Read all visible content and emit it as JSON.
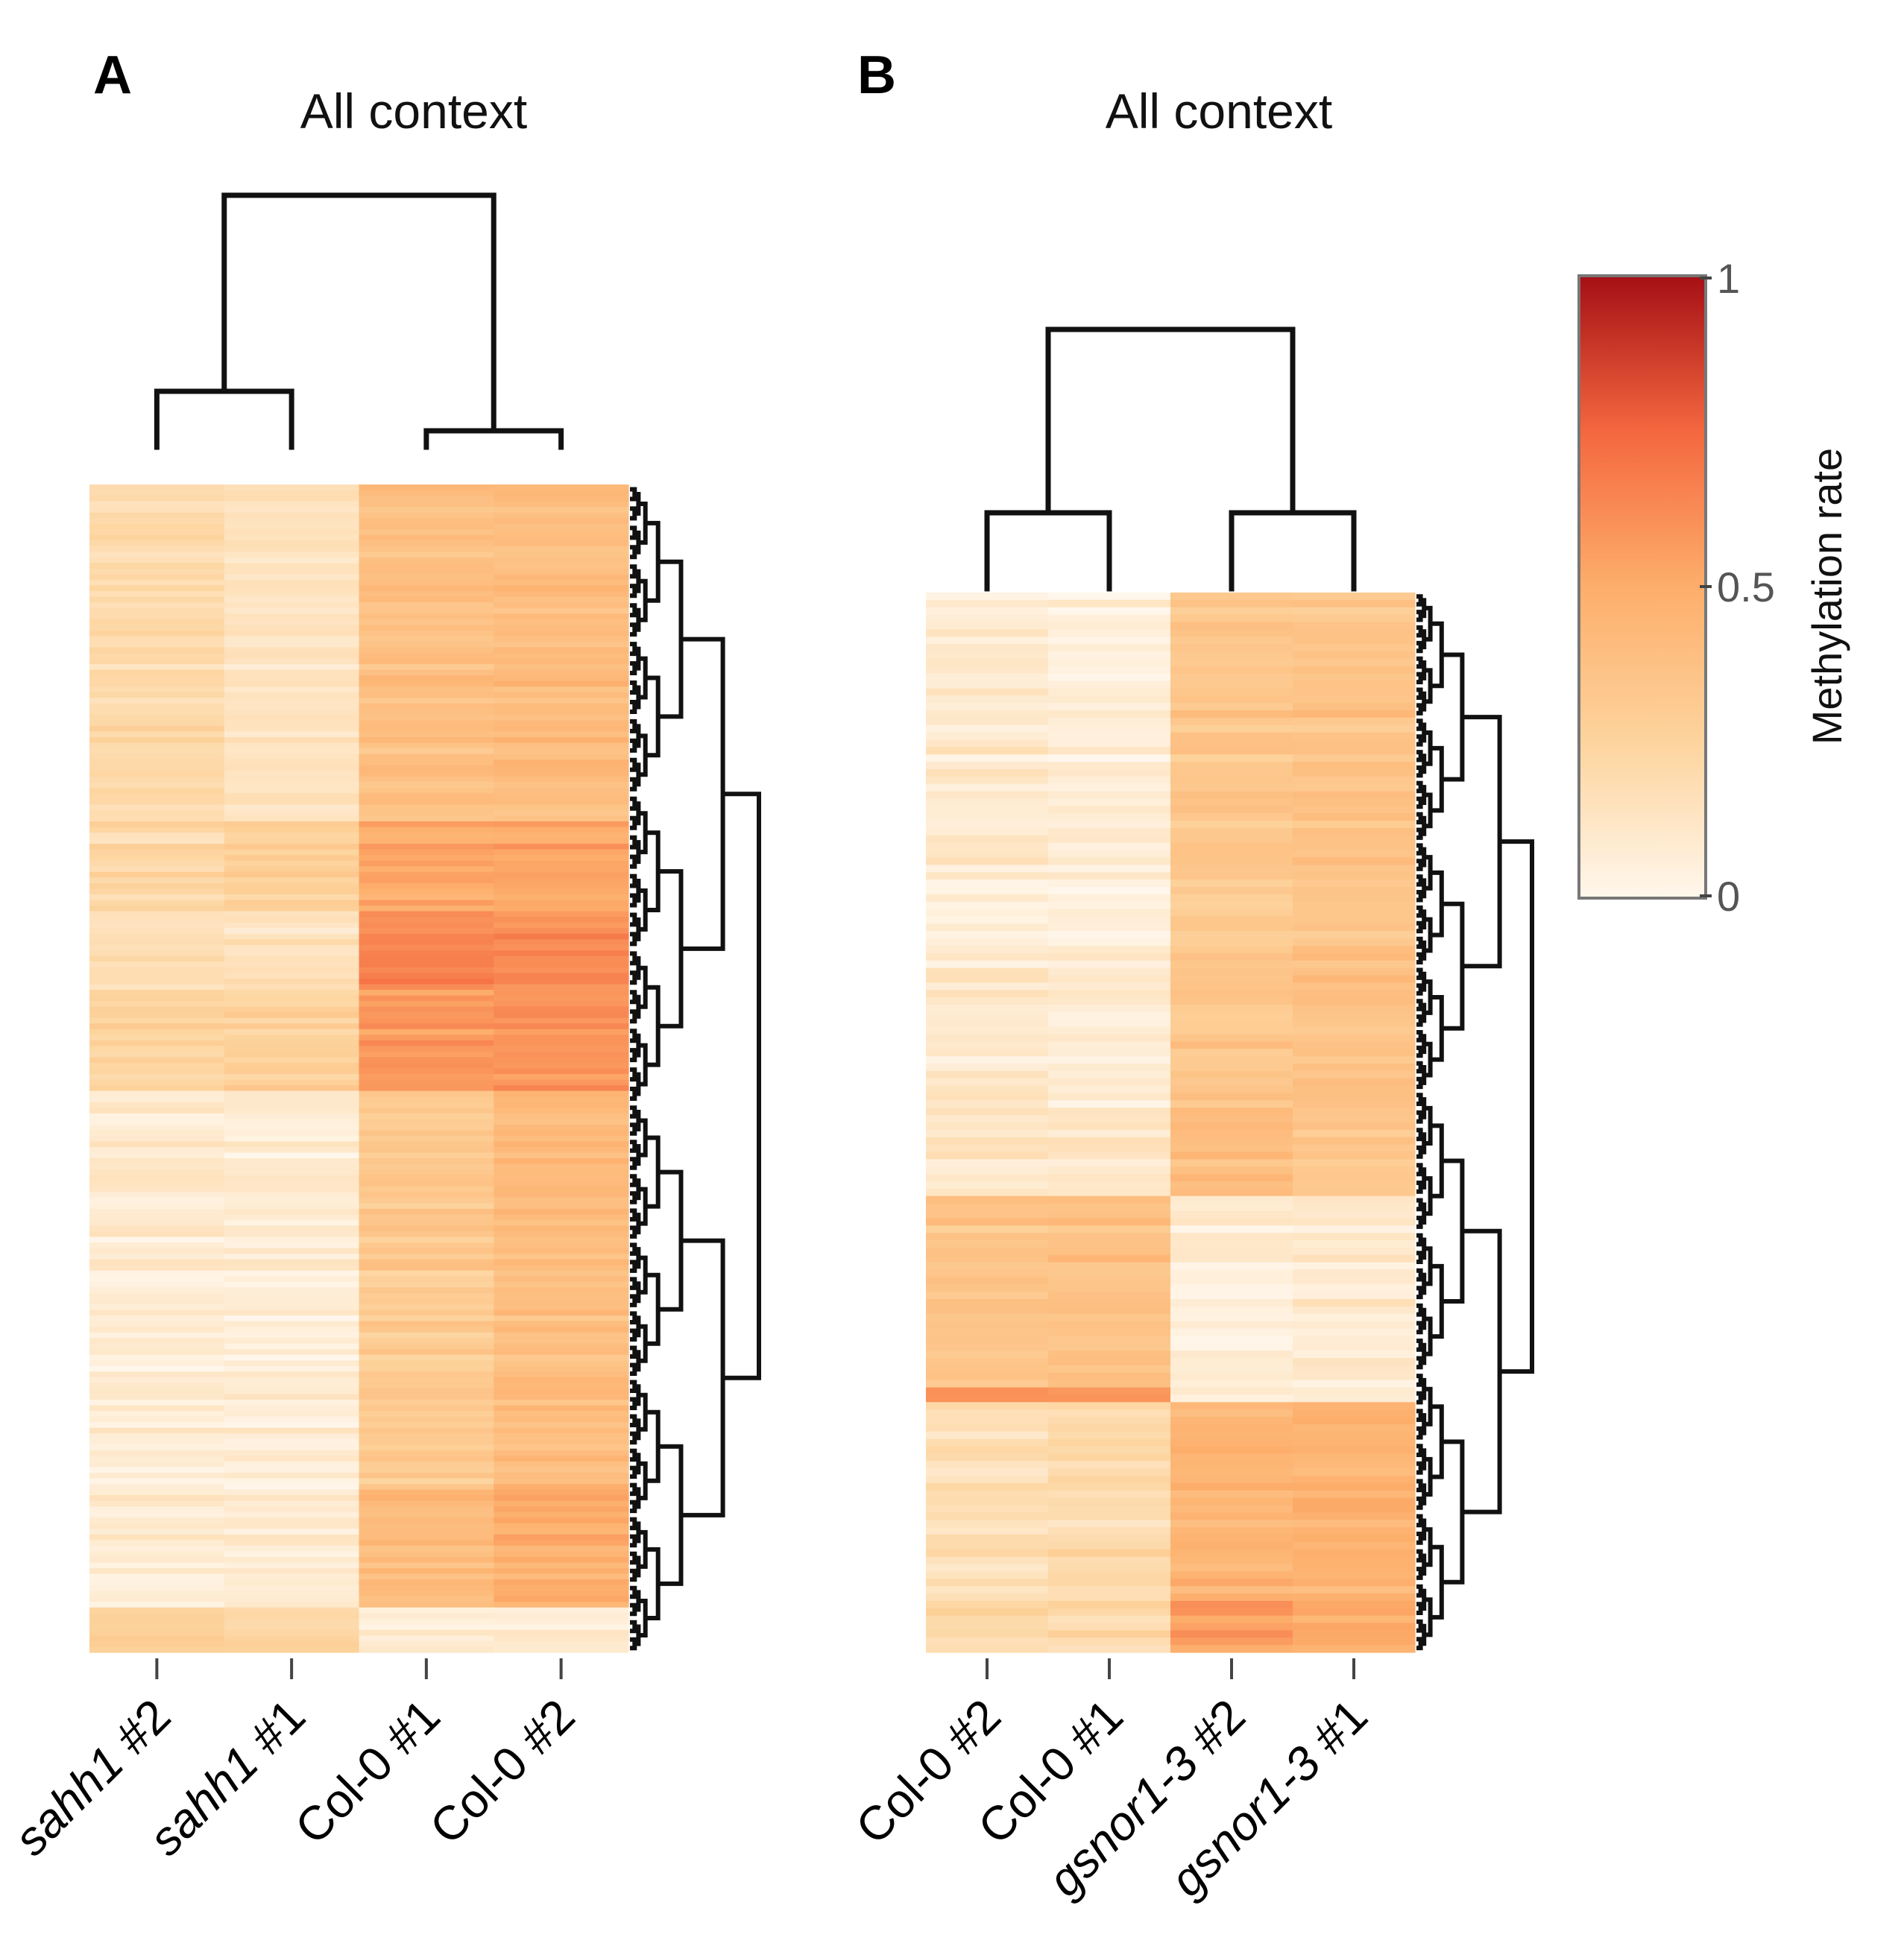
{
  "chart_data": [
    {
      "type": "heatmap",
      "panel": "A",
      "title": "All context",
      "columns": [
        {
          "label": "sahh1",
          "suffix": " #2",
          "italic": true
        },
        {
          "label": "sahh1",
          "suffix": " #1",
          "italic": true
        },
        {
          "label": "Col-0 #1",
          "suffix": "",
          "italic": false
        },
        {
          "label": "Col-0 #2",
          "suffix": "",
          "italic": false
        }
      ],
      "row_blocks": [
        {
          "rows": 60,
          "values": [
            0.2,
            0.14,
            0.38,
            0.4
          ]
        },
        {
          "rows": 16,
          "values": [
            0.22,
            0.26,
            0.5,
            0.52
          ]
        },
        {
          "rows": 14,
          "values": [
            0.17,
            0.15,
            0.64,
            0.62
          ]
        },
        {
          "rows": 18,
          "values": [
            0.26,
            0.28,
            0.58,
            0.6
          ]
        },
        {
          "rows": 70,
          "values": [
            0.08,
            0.07,
            0.32,
            0.4
          ]
        },
        {
          "rows": 22,
          "values": [
            0.07,
            0.08,
            0.4,
            0.48
          ]
        },
        {
          "rows": 8,
          "values": [
            0.24,
            0.22,
            0.06,
            0.08
          ]
        }
      ],
      "column_dendrogram": "((sahh1 #2, sahh1 #1), (Col-0 #1, Col-0 #2))",
      "colorbar": {
        "label": "Methylation rate",
        "range": [
          0,
          1
        ],
        "ticks": [
          "0",
          "0.5",
          "1"
        ]
      }
    },
    {
      "type": "heatmap",
      "panel": "B",
      "title": "All context",
      "columns": [
        {
          "label": "Col-0 #2",
          "suffix": "",
          "italic": false
        },
        {
          "label": "Col-0 #1",
          "suffix": "",
          "italic": false
        },
        {
          "label": "gsnor1-3",
          "suffix": " #2",
          "italic": true
        },
        {
          "label": "gsnor1-3",
          "suffix": " #1",
          "italic": true
        }
      ],
      "row_blocks": [
        {
          "rows": 70,
          "values": [
            0.1,
            0.06,
            0.34,
            0.36
          ]
        },
        {
          "rows": 12,
          "values": [
            0.12,
            0.1,
            0.38,
            0.32
          ]
        },
        {
          "rows": 26,
          "values": [
            0.36,
            0.38,
            0.08,
            0.1
          ]
        },
        {
          "rows": 2,
          "values": [
            0.62,
            0.6,
            0.1,
            0.1
          ]
        },
        {
          "rows": 26,
          "values": [
            0.16,
            0.2,
            0.44,
            0.46
          ]
        },
        {
          "rows": 8,
          "values": [
            0.22,
            0.2,
            0.56,
            0.52
          ]
        }
      ],
      "column_dendrogram": "((Col-0 #2, Col-0 #1), (gsnor1-3 #2, gsnor1-3 #1))",
      "colorbar": {
        "label": "Methylation rate",
        "range": [
          0,
          1
        ],
        "ticks": [
          "0",
          "0.5",
          "1"
        ]
      }
    }
  ],
  "colors": {
    "scale": [
      "#fff7ec",
      "#fdd49e",
      "#fdae6b",
      "#f4673f",
      "#a50f15"
    ],
    "line": "#111111"
  }
}
